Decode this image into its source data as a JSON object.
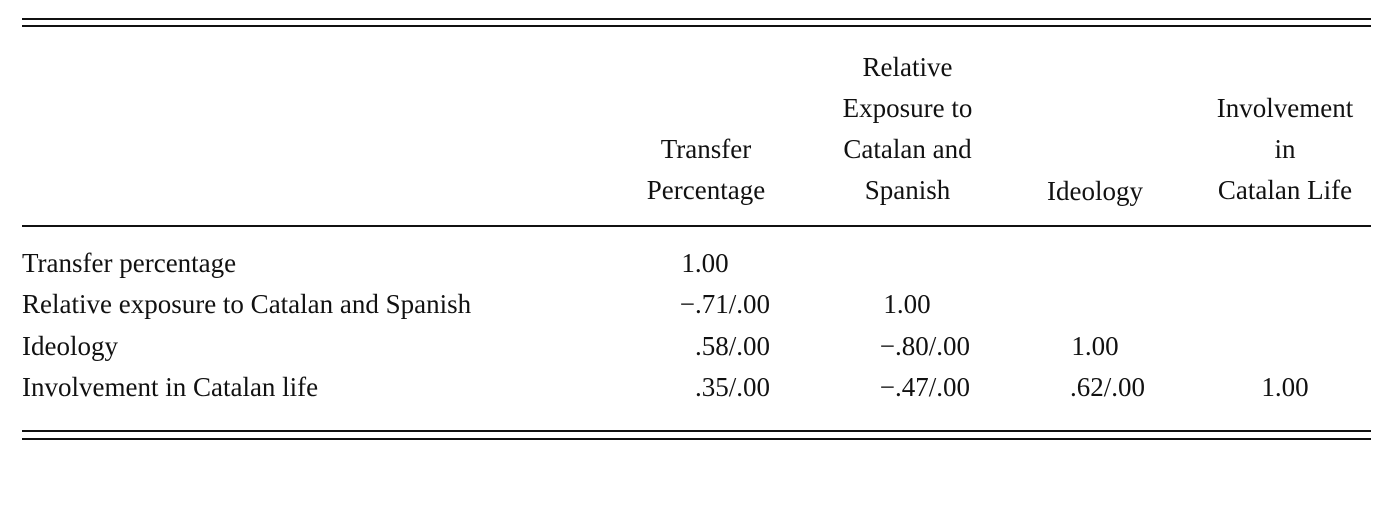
{
  "table": {
    "columns": [
      {
        "lines": [
          "Transfer",
          "Percentage"
        ]
      },
      {
        "lines": [
          "Relative",
          "Exposure to",
          "Catalan and",
          "Spanish"
        ]
      },
      {
        "lines": [
          "Ideology"
        ]
      },
      {
        "lines": [
          "Involvement",
          "in",
          "Catalan Life"
        ]
      }
    ],
    "rows": [
      {
        "label": "Transfer percentage",
        "values": [
          "1.00",
          "",
          "",
          ""
        ]
      },
      {
        "label": "Relative exposure to Catalan and Spanish",
        "values": [
          "−.71/.00",
          "1.00",
          "",
          ""
        ]
      },
      {
        "label": "Ideology",
        "values": [
          ".58/.00",
          "−.80/.00",
          "1.00",
          ""
        ]
      },
      {
        "label": "Involvement in Catalan life",
        "values": [
          ".35/.00",
          "−.47/.00",
          ".62/.00",
          "1.00"
        ]
      }
    ]
  }
}
